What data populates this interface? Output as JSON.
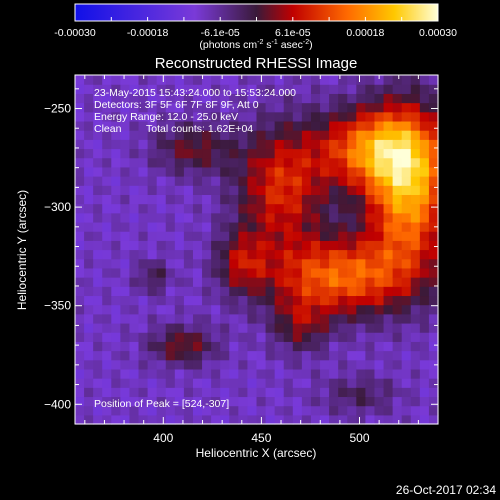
{
  "chart_data": {
    "type": "heatmap",
    "title": "Reconstructed RHESSI Image",
    "xlabel": "Heliocentric X (arcsec)",
    "ylabel": "Heliocentric Y (arcsec)",
    "xlim": [
      355,
      540
    ],
    "ylim": [
      -410,
      -233
    ],
    "x_ticks": [
      400,
      450,
      500
    ],
    "y_ticks": [
      -400,
      -350,
      -300,
      -250
    ],
    "colorbar": {
      "range": [
        -0.0003,
        0.0003
      ],
      "tick_labels": [
        "-0.00030",
        "-0.00018",
        "-6.1e-05",
        "6.1e-05",
        "0.00018",
        "0.00030"
      ],
      "unit": {
        "base": "(photons cm",
        "e1": "-2",
        "mid1": " s",
        "e2": "-1",
        "mid2": " asec",
        "e3": "-2",
        "end": ")"
      }
    },
    "annotations": [
      "23-May-2015 15:43:24.000 to 15:53:24.000",
      "Detectors: 3F 5F 6F 7F 8F 9F, Att 0",
      "Energy Range: 12.0 - 25.0 keV",
      "Clean",
      "Total counts: 1.62E+04"
    ],
    "peak_label": "Position of Peak = [524,-307]",
    "peak": [
      524,
      -307
    ],
    "sources": [
      {
        "x": 525,
        "y": -290,
        "sx": 15,
        "sy": 28,
        "amp": 0.00029
      },
      {
        "x": 505,
        "y": -270,
        "sx": 20,
        "sy": 14,
        "amp": 0.00022
      },
      {
        "x": 490,
        "y": -335,
        "sx": 26,
        "sy": 14,
        "amp": 0.00023
      },
      {
        "x": 460,
        "y": -290,
        "sx": 16,
        "sy": 22,
        "amp": 0.00018
      },
      {
        "x": 440,
        "y": -328,
        "sx": 9,
        "sy": 11,
        "amp": 0.00012
      },
      {
        "x": 415,
        "y": -270,
        "sx": 14,
        "sy": 9,
        "amp": 0.00011
      },
      {
        "x": 395,
        "y": -335,
        "sx": 6,
        "sy": 6,
        "amp": 8e-05
      },
      {
        "x": 410,
        "y": -370,
        "sx": 12,
        "sy": 7,
        "amp": 0.00012
      },
      {
        "x": 470,
        "y": -360,
        "sx": 10,
        "sy": 10,
        "amp": 0.0001
      },
      {
        "x": 500,
        "y": -395,
        "sx": 14,
        "sy": 7,
        "amp": 7e-05
      }
    ],
    "background": -9e-05
  },
  "footer": {
    "timestamp": "26-Oct-2017 02:34"
  }
}
